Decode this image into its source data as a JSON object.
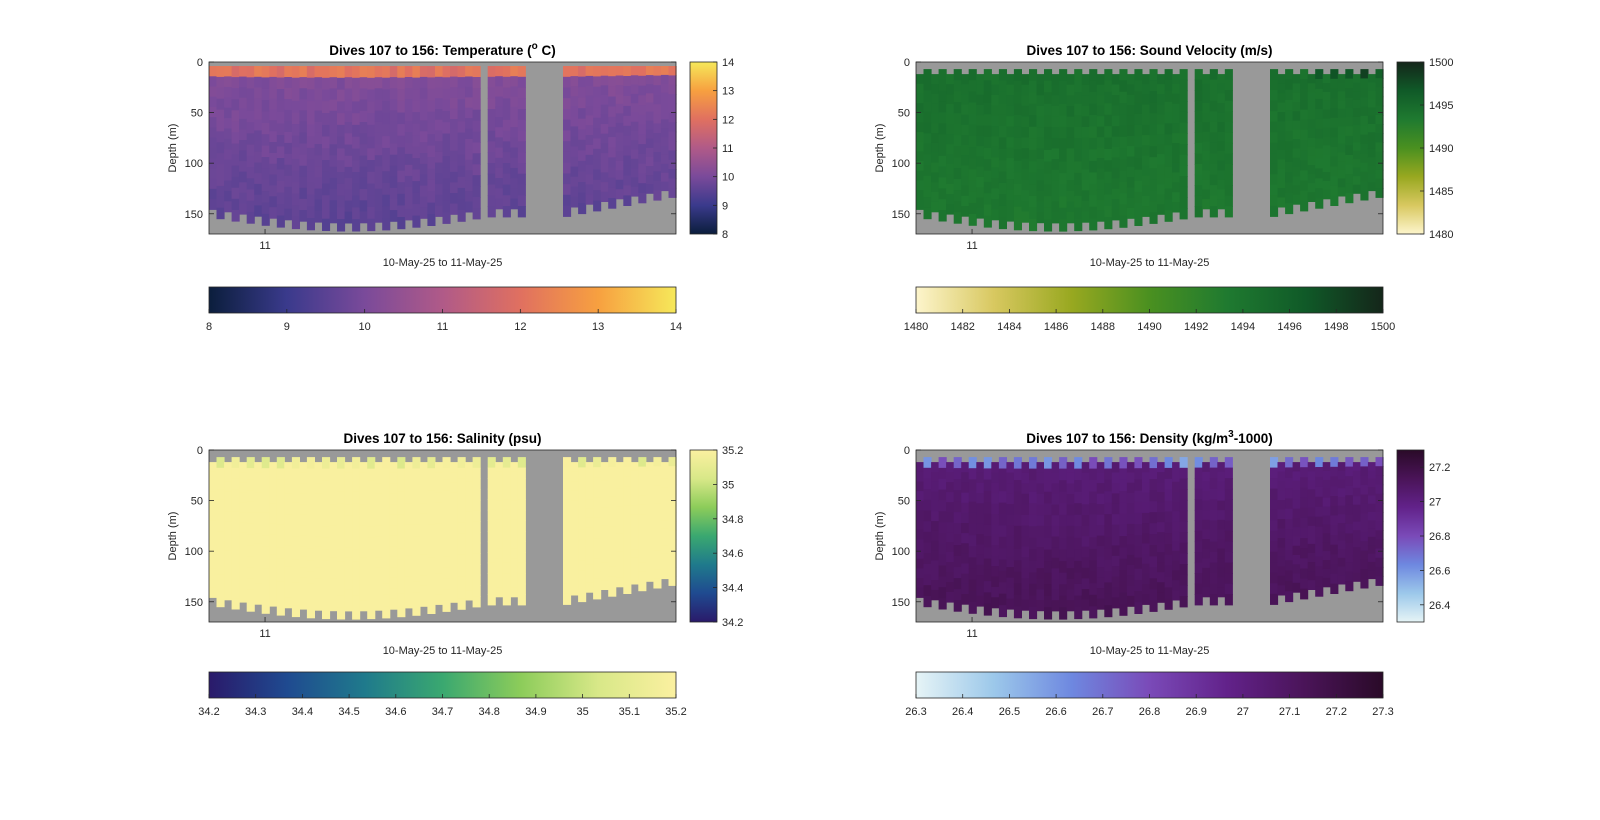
{
  "chart_data": [
    {
      "type": "heatmap",
      "title": "Dives 107 to 156: Temperature (",
      "title_sup": "o",
      "title_tail": " C)",
      "xlabel": "10-May-25 to 11-May-25",
      "ylabel": "Depth (m)",
      "x_tick_labels": [
        "11"
      ],
      "yticks": [
        0,
        50,
        100,
        150
      ],
      "ylim": [
        0,
        170
      ],
      "side_colorbar_ticks": [
        "8",
        "9",
        "10",
        "11",
        "12",
        "13",
        "14"
      ],
      "bottom_colorbar_ticks": [
        "8",
        "9",
        "10",
        "11",
        "12",
        "13",
        "14"
      ],
      "clim": [
        8,
        14
      ],
      "colormap": [
        "#0b1e3c",
        "#3a3a8c",
        "#7a4a9a",
        "#b05a88",
        "#e07060",
        "#f7a040",
        "#f6e85a"
      ],
      "background_color": "#999999",
      "field": "temperature"
    },
    {
      "type": "heatmap",
      "title": "Dives 107 to 156: Sound Velocity (m/s)",
      "title_sup": "",
      "title_tail": "",
      "xlabel": "10-May-25 to 11-May-25",
      "ylabel": "Depth (m)",
      "x_tick_labels": [
        "11"
      ],
      "yticks": [
        0,
        50,
        100,
        150
      ],
      "ylim": [
        0,
        170
      ],
      "side_colorbar_ticks": [
        "1480",
        "1485",
        "1490",
        "1495",
        "1500"
      ],
      "bottom_colorbar_ticks": [
        "1480",
        "1482",
        "1484",
        "1486",
        "1488",
        "1490",
        "1492",
        "1494",
        "1496",
        "1498",
        "1500"
      ],
      "clim": [
        1480,
        1500
      ],
      "colormap": [
        "#fdf5cc",
        "#d8c860",
        "#98a820",
        "#4a9020",
        "#1f7a30",
        "#105a28",
        "#14261a"
      ],
      "background_color": "#999999",
      "field": "sound_velocity"
    },
    {
      "type": "heatmap",
      "title": "Dives 107 to 156: Salinity (psu)",
      "title_sup": "",
      "title_tail": "",
      "xlabel": "10-May-25 to 11-May-25",
      "ylabel": "Depth (m)",
      "x_tick_labels": [
        "11"
      ],
      "yticks": [
        0,
        50,
        100,
        150
      ],
      "ylim": [
        0,
        170
      ],
      "side_colorbar_ticks": [
        "34.2",
        "34.4",
        "34.6",
        "34.8",
        "35",
        "35.2"
      ],
      "bottom_colorbar_ticks": [
        "34.2",
        "34.3",
        "34.4",
        "34.5",
        "34.6",
        "34.7",
        "34.8",
        "34.9",
        "35",
        "35.1",
        "35.2"
      ],
      "clim": [
        34.2,
        35.2
      ],
      "colormap": [
        "#2a1a6a",
        "#1f4a90",
        "#1f7a8c",
        "#3aa870",
        "#8ccc5a",
        "#d8e888",
        "#fbf0a0"
      ],
      "background_color": "#999999",
      "field": "salinity"
    },
    {
      "type": "heatmap",
      "title": "Dives 107 to 156: Density (kg/m",
      "title_sup": "3",
      "title_tail": "-1000)",
      "xlabel": "10-May-25 to 11-May-25",
      "ylabel": "Depth (m)",
      "x_tick_labels": [
        "11"
      ],
      "yticks": [
        0,
        50,
        100,
        150
      ],
      "ylim": [
        0,
        170
      ],
      "side_colorbar_ticks": [
        "26.4",
        "26.6",
        "26.8",
        "27",
        "27.2"
      ],
      "bottom_colorbar_ticks": [
        "26.3",
        "26.4",
        "26.5",
        "26.6",
        "26.7",
        "26.8",
        "26.9",
        "27",
        "27.1",
        "27.2",
        "27.3"
      ],
      "clim": [
        26.3,
        27.3
      ],
      "colormap": [
        "#e6f4f6",
        "#9cc8ea",
        "#6e88e0",
        "#7a4ab8",
        "#62228a",
        "#4a1458",
        "#2a0a28"
      ],
      "background_color": "#999999",
      "field": "density"
    }
  ]
}
